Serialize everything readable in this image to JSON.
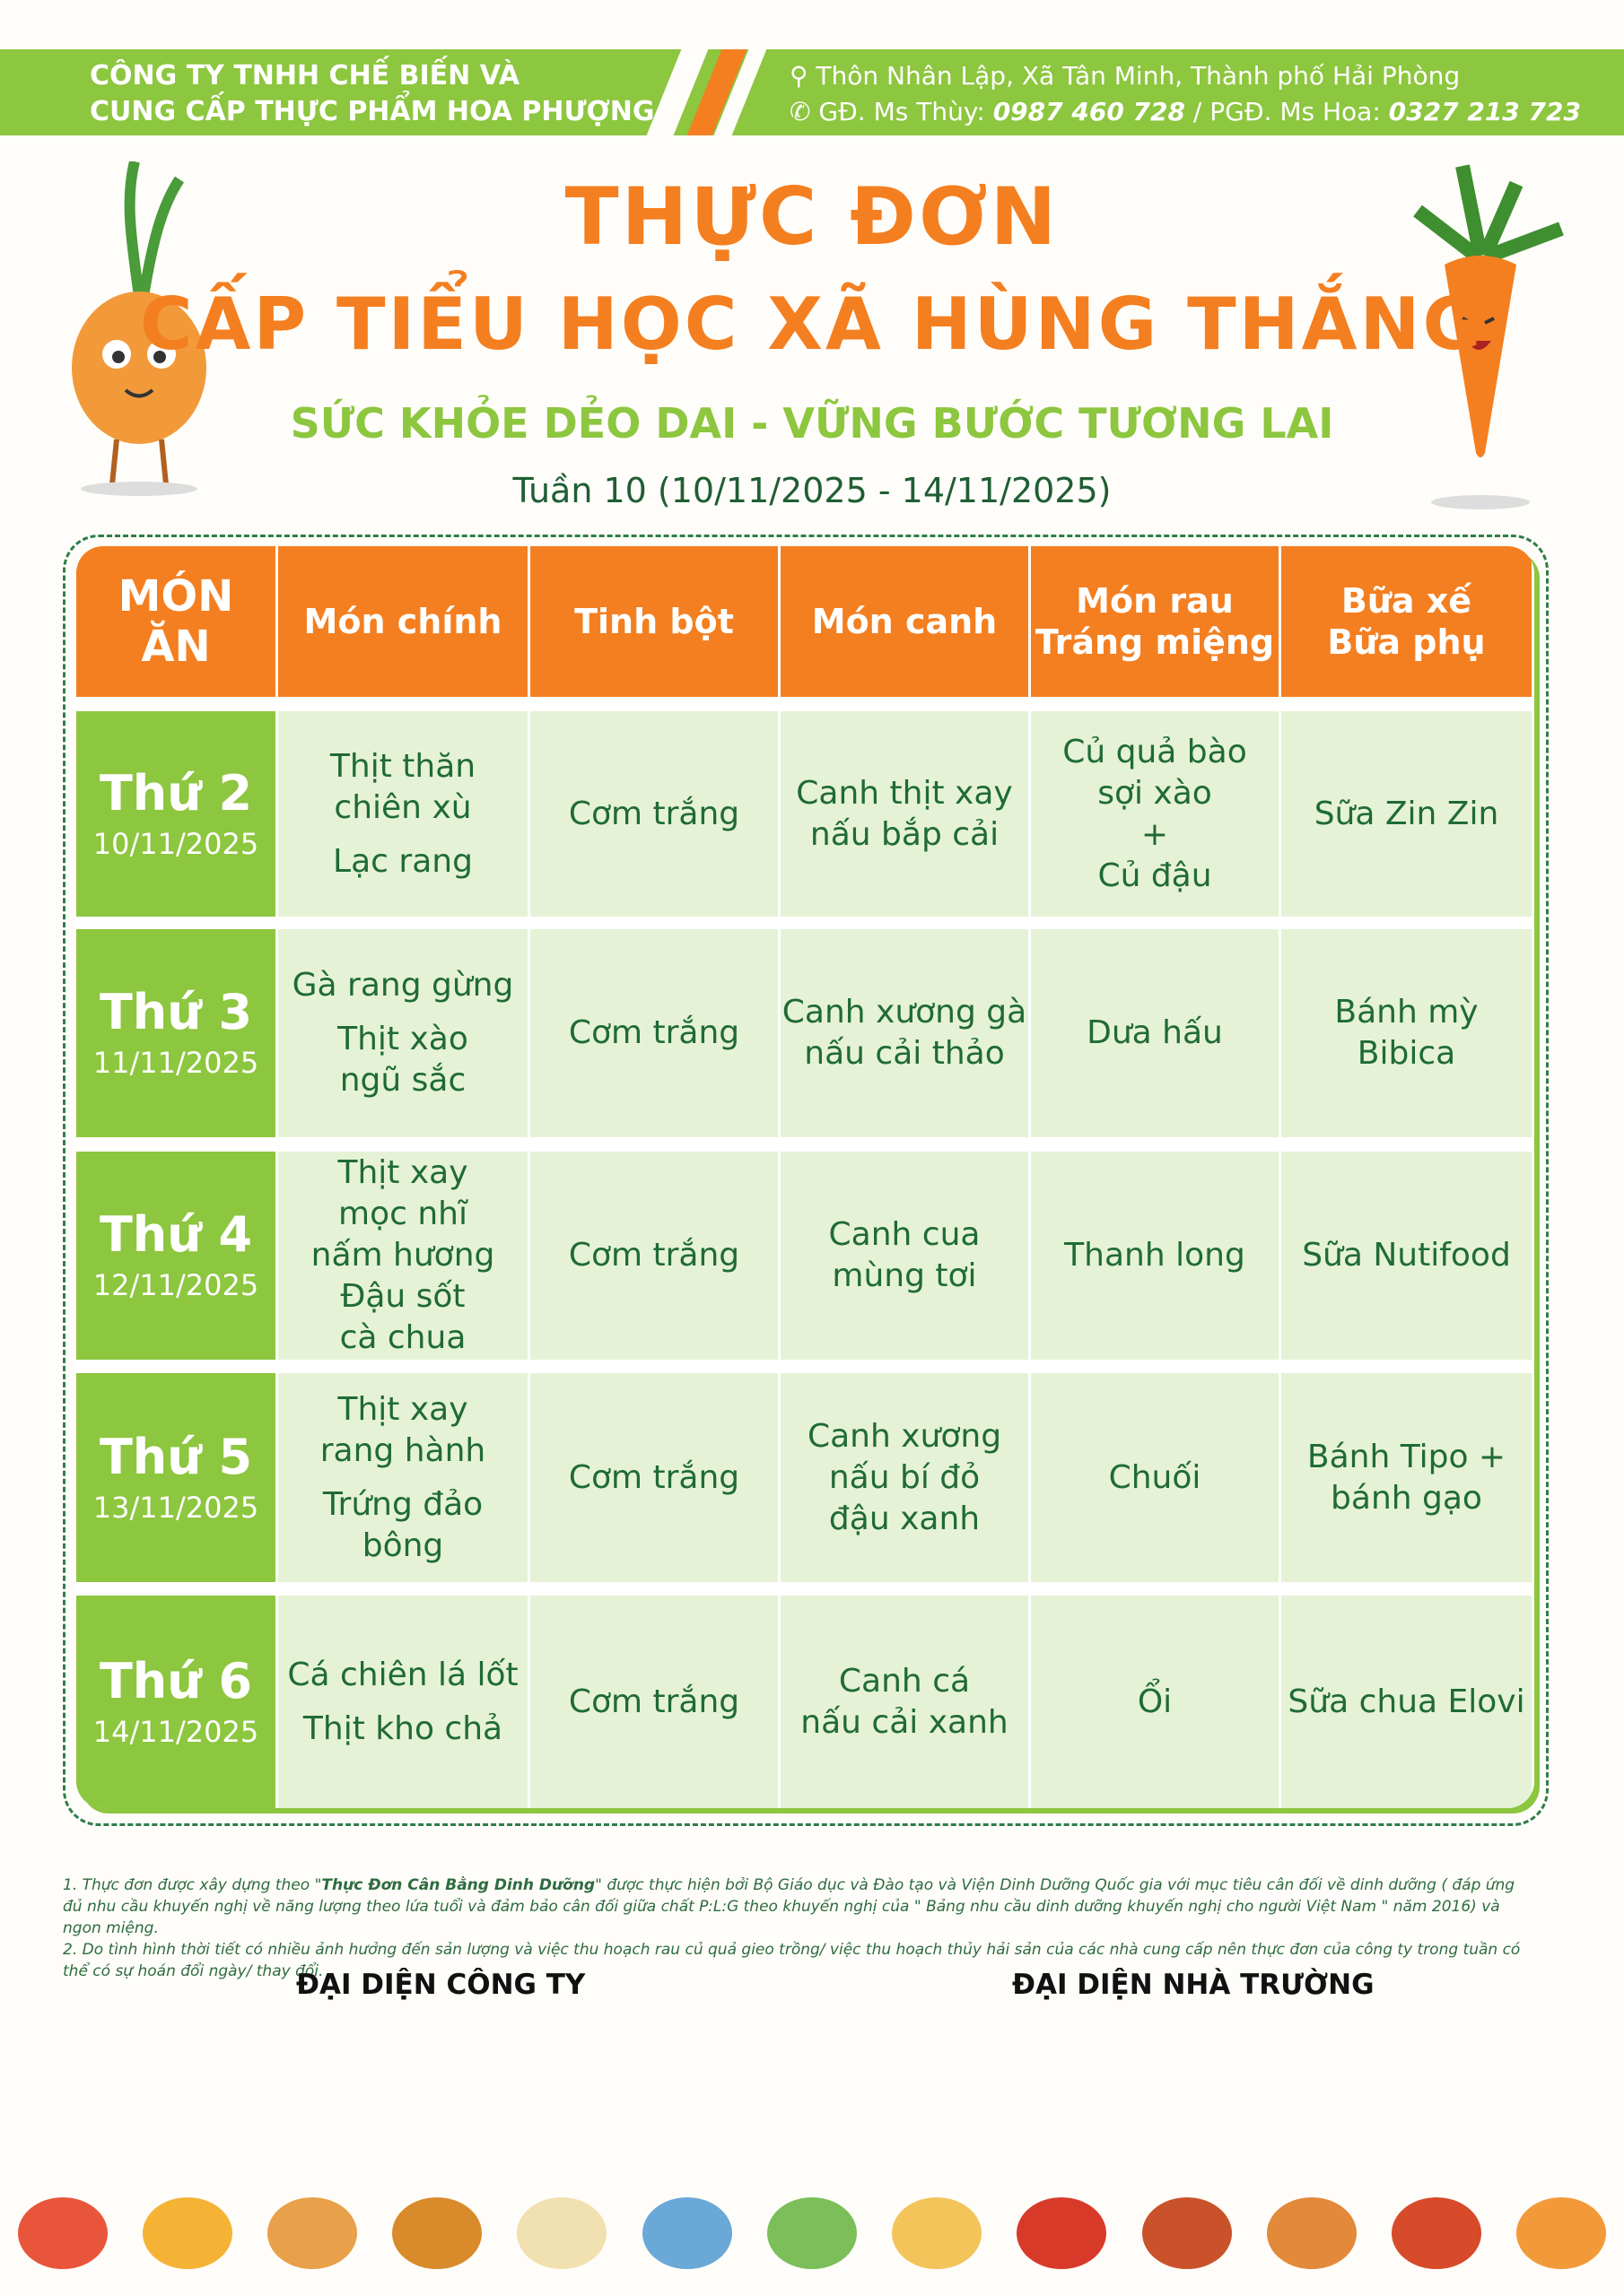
{
  "header": {
    "company_line1": "CÔNG TY TNHH CHẾ BIẾN VÀ",
    "company_line2": "CUNG CẤP THỰC PHẨM HOA PHƯỢNG",
    "address": "Thôn Nhân Lập, Xã Tân Minh, Thành phố Hải Phòng",
    "phone_prefix1": "GĐ. Ms Thùy: ",
    "phone1": "0987 460 728",
    "phone_sep": " / PGĐ. Ms Hoa: ",
    "phone2": "0327 213 723"
  },
  "title": {
    "line1": "THỰC ĐƠN",
    "line2": "CẤP TIỂU HỌC XÃ HÙNG THẮNG",
    "slogan": "SỨC KHỎE DẺO DAI - VỮNG BƯỚC TƯƠNG LAI",
    "week": "Tuần 10 (10/11/2025 - 14/11/2025)"
  },
  "colors": {
    "orange": "#f47f20",
    "green": "#8dc63f",
    "dark_green": "#1f6b35"
  },
  "table": {
    "columns": [
      "MÓN\nĂN",
      "Món chính",
      "Tinh bột",
      "Món canh",
      "Món rau\nTráng miệng",
      "Bữa xế\nBữa phụ"
    ],
    "rows": [
      {
        "day": "Thứ 2",
        "date": "10/11/2025",
        "cells": [
          "Thịt thăn\nchiên xù\n\nLạc rang",
          "Cơm trắng",
          "Canh thịt xay\nnấu bắp cải",
          "Củ quả bào\nsợi xào\n+\nCủ đậu",
          "Sữa Zin Zin"
        ]
      },
      {
        "day": "Thứ 3",
        "date": "11/11/2025",
        "cells": [
          "Gà rang gừng\n\nThịt xào\nngũ sắc",
          "Cơm trắng",
          "Canh xương gà\nnấu cải thảo",
          "Dưa hấu",
          "Bánh mỳ\nBibica"
        ]
      },
      {
        "day": "Thứ 4",
        "date": "12/11/2025",
        "cells": [
          "Thịt xay\nmọc nhĩ\nnấm hương\nĐậu sốt\ncà chua",
          "Cơm trắng",
          "Canh cua\nmùng tơi",
          "Thanh long",
          "Sữa Nutifood"
        ]
      },
      {
        "day": "Thứ 5",
        "date": "13/11/2025",
        "cells": [
          "Thịt xay\nrang hành\n\nTrứng đảo bông",
          "Cơm trắng",
          "Canh xương\nnấu bí đỏ\nđậu xanh",
          "Chuối",
          "Bánh Tipo +\nbánh gạo"
        ]
      },
      {
        "day": "Thứ 6",
        "date": "14/11/2025",
        "cells": [
          "Cá chiên lá lốt\n\nThịt kho chả",
          "Cơm trắng",
          "Canh cá\nnấu cải xanh",
          "Ổi",
          "Sữa chua Elovi"
        ]
      }
    ]
  },
  "notes": {
    "n1_a": "1. Thực đơn được xây dựng theo \"",
    "n1_b": "Thực Đơn Cân Bằng Dinh Dưỡng",
    "n1_c": "\" được thực hiện bởi Bộ Giáo dục và Đào tạo và Viện Dinh Dưỡng Quốc gia với mục tiêu cân đối về dinh dưỡng ( đáp ứng đủ nhu cầu khuyến nghị về năng lượng theo lứa tuổi và đảm bảo cân đối giữa chất P:L:G theo khuyến nghị của \" Bảng nhu cầu dinh dưỡng khuyến nghị cho người Việt Nam \" năm 2016) và ngon miệng.",
    "n2": "2. Do tình hình thời tiết có nhiều ảnh hưởng đến sản lượng và việc thu hoạch rau củ quả gieo trồng/ việc thu hoạch thủy hải sản của các nhà cung cấp nên thực đơn của công ty trong tuần có thể có sự hoán đổi ngày/ thay đổi."
  },
  "signatures": {
    "company": "ĐẠI DIỆN CÔNG TY",
    "school": "ĐẠI DIỆN NHÀ TRƯỜNG"
  },
  "decorations": [
    "onion-mascot",
    "carrot-mascot",
    "food-icons"
  ]
}
